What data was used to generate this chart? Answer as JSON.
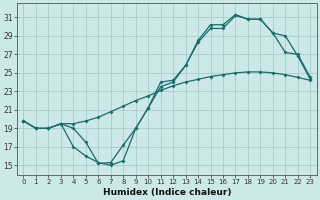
{
  "xlabel": "Humidex (Indice chaleur)",
  "xlim": [
    -0.5,
    23.5
  ],
  "ylim": [
    14.0,
    32.5
  ],
  "yticks": [
    15,
    17,
    19,
    21,
    23,
    25,
    27,
    29,
    31
  ],
  "xticks": [
    0,
    1,
    2,
    3,
    4,
    5,
    6,
    7,
    8,
    9,
    10,
    11,
    12,
    13,
    14,
    15,
    16,
    17,
    18,
    19,
    20,
    21,
    22,
    23
  ],
  "bg_color": "#cde8e8",
  "grid_color": "#a8cccc",
  "line_color": "#1a6b6b",
  "line1_x": [
    0,
    1,
    2,
    3,
    4,
    5,
    6,
    7,
    8,
    9,
    10,
    11,
    12,
    13,
    14,
    15,
    16,
    17,
    18,
    19,
    20,
    21,
    22,
    23
  ],
  "line1_y": [
    19.8,
    19.0,
    19.0,
    19.5,
    19.5,
    19.8,
    20.2,
    20.8,
    21.4,
    22.0,
    22.5,
    23.1,
    23.6,
    24.0,
    24.3,
    24.6,
    24.8,
    25.0,
    25.1,
    25.1,
    25.0,
    24.8,
    24.5,
    24.2
  ],
  "line2_x": [
    0,
    1,
    2,
    3,
    4,
    5,
    6,
    7,
    8,
    9,
    10,
    11,
    12,
    13,
    14,
    15,
    16,
    17,
    18,
    19,
    20,
    21,
    22,
    23
  ],
  "line2_y": [
    19.8,
    19.0,
    19.0,
    19.5,
    19.0,
    17.5,
    15.2,
    15.3,
    17.2,
    19.0,
    21.2,
    23.5,
    24.0,
    25.8,
    28.3,
    29.8,
    29.8,
    31.2,
    30.8,
    30.8,
    29.3,
    29.0,
    26.8,
    24.3
  ],
  "line3_x": [
    0,
    1,
    2,
    3,
    4,
    5,
    6,
    7,
    8,
    9,
    10,
    11,
    12,
    13,
    14,
    15,
    16,
    17,
    18,
    19,
    20,
    21,
    22,
    23
  ],
  "line3_y": [
    19.8,
    19.0,
    19.0,
    19.5,
    17.0,
    16.0,
    15.3,
    15.0,
    15.5,
    19.0,
    21.2,
    24.0,
    24.2,
    25.8,
    28.5,
    30.2,
    30.2,
    31.3,
    30.8,
    30.8,
    29.3,
    27.2,
    27.0,
    24.5
  ]
}
